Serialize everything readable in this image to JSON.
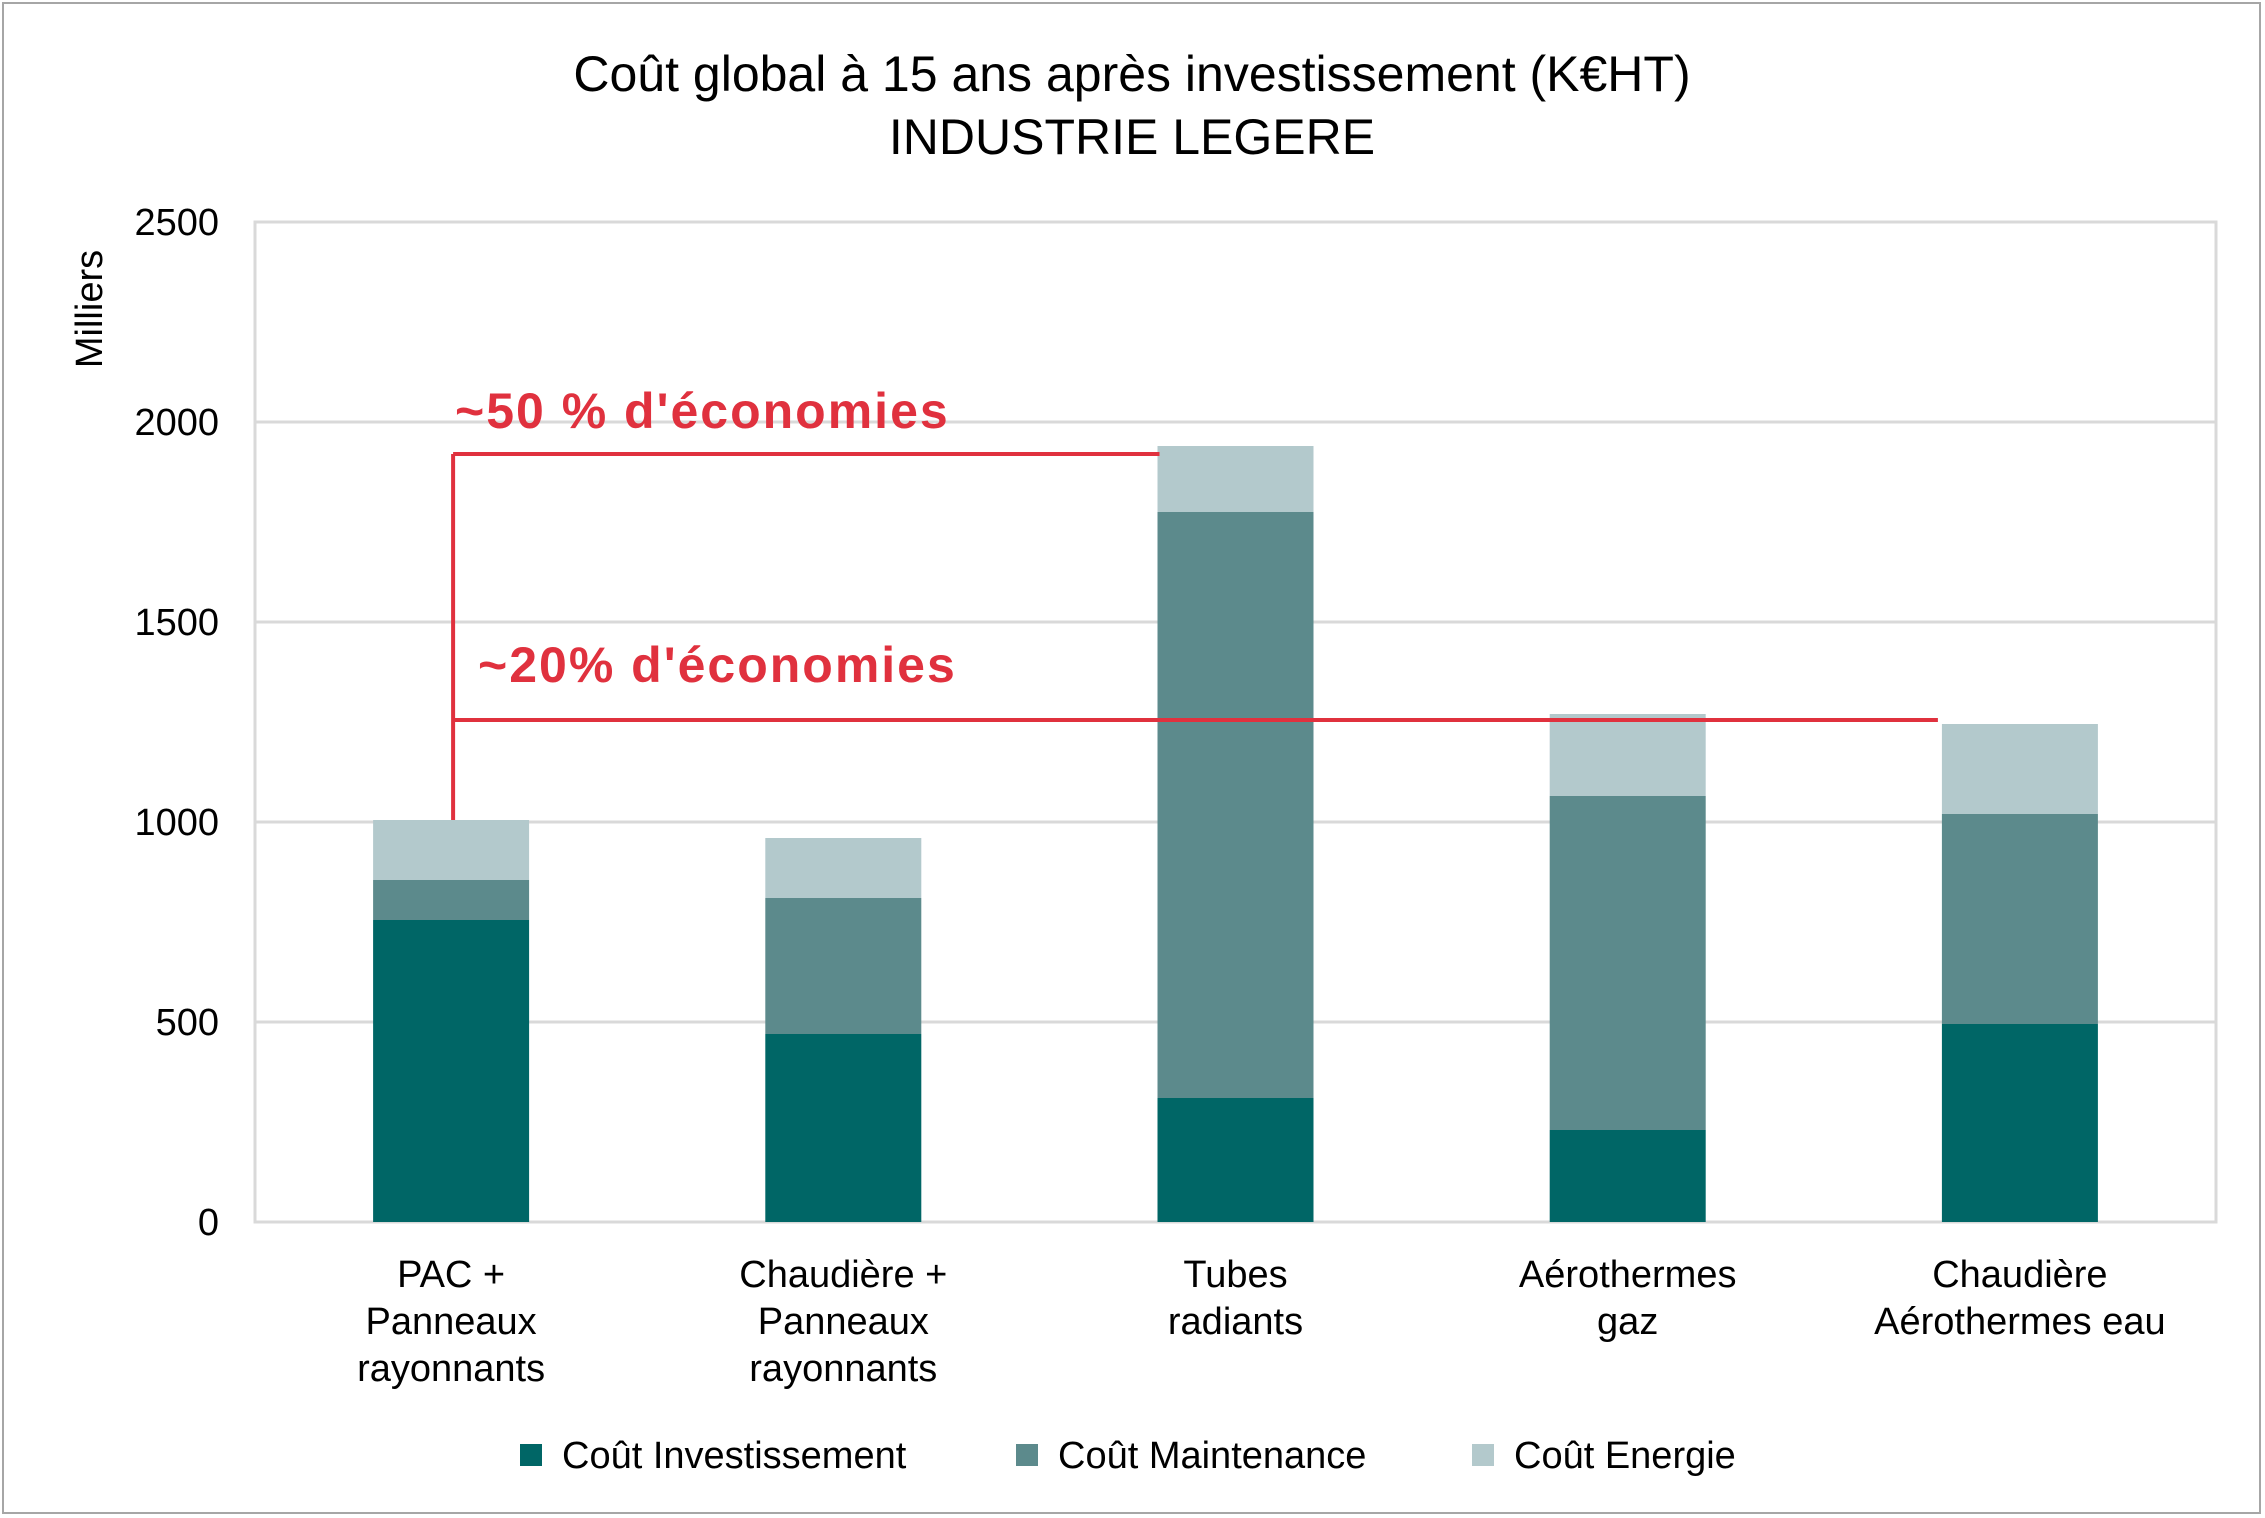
{
  "chart_data": {
    "type": "bar",
    "stacked": true,
    "title": "Coût global à 15 ans après investissement (K€HT)",
    "subtitle": "INDUSTRIE LEGERE",
    "ylabel": "Milliers",
    "xlabel": "",
    "ylim": [
      0,
      2500
    ],
    "yticks": [
      0,
      500,
      1000,
      1500,
      2000,
      2500
    ],
    "grid": true,
    "legend_position": "bottom",
    "categories": [
      [
        "PAC +",
        "Panneaux",
        "rayonnants"
      ],
      [
        "Chaudière +",
        "Panneaux",
        "rayonnants"
      ],
      [
        "Tubes",
        "radiants"
      ],
      [
        "Aérothermes",
        "gaz"
      ],
      [
        "Chaudière",
        "Aérothermes eau"
      ]
    ],
    "series": [
      {
        "name": "Coût Investissement",
        "color": "#006666",
        "values": [
          755,
          470,
          310,
          230,
          495
        ]
      },
      {
        "name": "Coût Maintenance",
        "color": "#5c8a8c",
        "values": [
          100,
          340,
          1465,
          835,
          525
        ]
      },
      {
        "name": "Coût Energie",
        "color": "#b3c9cc",
        "values": [
          150,
          150,
          165,
          205,
          225
        ]
      }
    ],
    "annotations": [
      {
        "text": "~50 % d'économies",
        "y": 1920,
        "from_category": 0,
        "to_category": 2
      },
      {
        "text": "~20% d'économies",
        "y": 1255,
        "from_category": 0,
        "to_category": 4
      }
    ],
    "annotation_color": "#e0313e"
  }
}
